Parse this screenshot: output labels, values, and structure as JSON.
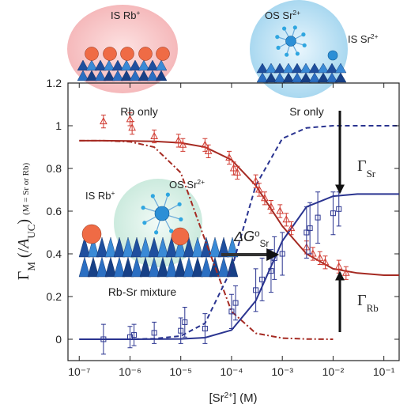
{
  "chart_data": {
    "type": "log-scatter-fit",
    "xscale": "log",
    "xlim": [
      6e-08,
      0.2
    ],
    "ylim": [
      -0.1,
      1.2
    ],
    "xticks": [
      {
        "value": 1e-07,
        "label": "10⁻⁷"
      },
      {
        "value": 1e-06,
        "label": "10⁻⁶"
      },
      {
        "value": 1e-05,
        "label": "10⁻⁵"
      },
      {
        "value": 0.0001,
        "label": "10⁻⁴"
      },
      {
        "value": 0.001,
        "label": "10⁻³"
      },
      {
        "value": 0.01,
        "label": "10⁻²"
      },
      {
        "value": 0.1,
        "label": "10⁻¹"
      }
    ],
    "yticks": [
      0,
      0.2,
      0.4,
      0.6,
      0.8,
      1,
      1.2
    ],
    "x_label": [
      {
        "text": "[Sr"
      },
      {
        "text": "2+",
        "pos": "sup"
      },
      {
        "text": "] (M)"
      }
    ],
    "y_label": [
      {
        "text": "Γ"
      },
      {
        "text": "M",
        "pos": "sub"
      },
      {
        "text": " (/"
      },
      {
        "text": "A",
        "style": "italic"
      },
      {
        "text": "UC",
        "pos": "sub"
      },
      {
        "text": ")  "
      },
      {
        "text": "(M = Sr or Rb)",
        "pos": "small"
      }
    ],
    "series": [
      {
        "marker": "triangle",
        "color": "#d03a30",
        "x": [
          3e-07,
          1e-06,
          1.1e-06,
          3e-06,
          9e-06,
          1.1e-05,
          3e-05,
          3.5e-05,
          9e-05,
          0.00011,
          0.00013,
          0.0003,
          0.00035,
          0.00045,
          0.0006,
          0.0009,
          0.0012,
          0.0015,
          0.003,
          0.004,
          0.0055,
          0.007,
          0.013,
          0.018
        ],
        "values": [
          1.02,
          1.03,
          0.99,
          0.95,
          0.93,
          0.91,
          0.91,
          0.88,
          0.85,
          0.8,
          0.78,
          0.74,
          0.7,
          0.66,
          0.62,
          0.6,
          0.56,
          0.52,
          0.43,
          0.4,
          0.38,
          0.36,
          0.34,
          0.31
        ],
        "errors": [
          0.03,
          0.03,
          0.03,
          0.03,
          0.03,
          0.03,
          0.03,
          0.03,
          0.03,
          0.03,
          0.03,
          0.03,
          0.03,
          0.03,
          0.03,
          0.03,
          0.03,
          0.03,
          0.03,
          0.03,
          0.03,
          0.03,
          0.03,
          0.03
        ]
      },
      {
        "marker": "square",
        "color": "#2a3490",
        "x": [
          3e-07,
          1e-06,
          1.2e-06,
          3e-06,
          1e-05,
          1.2e-05,
          3e-05,
          0.0001,
          0.00012,
          0.0003,
          0.0004,
          0.0006,
          0.0007,
          0.001,
          0.003,
          0.0035,
          0.005,
          0.01,
          0.013
        ],
        "values": [
          0,
          0.01,
          0.02,
          0.03,
          0.04,
          0.08,
          0.05,
          0.13,
          0.17,
          0.23,
          0.28,
          0.32,
          0.38,
          0.4,
          0.5,
          0.52,
          0.57,
          0.59,
          0.61
        ],
        "errors": [
          0.07,
          0.05,
          0.05,
          0.05,
          0.06,
          0.07,
          0.07,
          0.08,
          0.08,
          0.1,
          0.1,
          0.1,
          0.1,
          0.1,
          0.12,
          0.12,
          0.12,
          0.1,
          0.08
        ]
      }
    ],
    "curves": [
      {
        "color": "#a52a22",
        "dash": "solid",
        "x": [
          1e-07,
          3e-07,
          1e-06,
          3e-06,
          1e-05,
          3e-05,
          0.0001,
          0.0003,
          0.001,
          0.003,
          0.01,
          0.03,
          0.1,
          0.2
        ],
        "values": [
          0.93,
          0.93,
          0.929,
          0.927,
          0.92,
          0.9,
          0.84,
          0.72,
          0.53,
          0.4,
          0.33,
          0.31,
          0.3,
          0.3
        ]
      },
      {
        "color": "#a52a22",
        "dash": "dashdot",
        "x": [
          1e-07,
          3e-07,
          1e-06,
          3e-06,
          1e-05,
          3e-05,
          0.0001,
          0.0003,
          0.001,
          0.003,
          0.01
        ],
        "values": [
          0.93,
          0.93,
          0.925,
          0.9,
          0.78,
          0.465,
          0.13,
          0.028,
          0.005,
          0.001,
          0
        ]
      },
      {
        "color": "#2a3490",
        "dash": "solid",
        "x": [
          1e-07,
          1e-06,
          1e-05,
          3e-05,
          0.0001,
          0.0003,
          0.001,
          0.003,
          0.01,
          0.03,
          0.1,
          0.2
        ],
        "values": [
          0,
          0,
          0.0015,
          0.0075,
          0.043,
          0.18,
          0.46,
          0.62,
          0.67,
          0.68,
          0.68,
          0.68
        ]
      },
      {
        "color": "#2a3490",
        "dash": "dashed",
        "x": [
          1e-07,
          1e-06,
          3e-06,
          1e-05,
          3e-05,
          0.0001,
          0.0003,
          0.001,
          0.003,
          0.01,
          0.03,
          0.1,
          0.2
        ],
        "values": [
          0,
          0,
          0.003,
          0.015,
          0.075,
          0.33,
          0.72,
          0.94,
          0.99,
          1,
          1,
          1,
          1
        ]
      }
    ],
    "annotations": {
      "rb_only": "Rb only",
      "sr_only": "Sr only",
      "mixture": "Rb-Sr mixture",
      "is_rb_top": [
        {
          "text": "IS Rb"
        },
        {
          "text": "+",
          "pos": "sup"
        }
      ],
      "os_sr_top": [
        {
          "text": "OS Sr"
        },
        {
          "text": "2+",
          "pos": "sup"
        }
      ],
      "is_sr_top": [
        {
          "text": "IS Sr"
        },
        {
          "text": "2+",
          "pos": "sup"
        }
      ],
      "is_rb_inset": [
        {
          "text": "IS Rb"
        },
        {
          "text": "+",
          "pos": "sup"
        }
      ],
      "os_sr_inset": [
        {
          "text": "OS Sr"
        },
        {
          "text": "2+",
          "pos": "sup"
        }
      ],
      "delta_g": [
        {
          "text": "ΔG",
          "style": "italic"
        },
        {
          "text": "o",
          "pos": "sup"
        },
        {
          "text": "Sr",
          "pos": "sub"
        }
      ],
      "gamma_sr": [
        {
          "text": "Γ"
        },
        {
          "text": "Sr",
          "pos": "sub"
        }
      ],
      "gamma_rb": [
        {
          "text": "Γ"
        },
        {
          "text": "Rb",
          "pos": "sub"
        }
      ]
    }
  }
}
